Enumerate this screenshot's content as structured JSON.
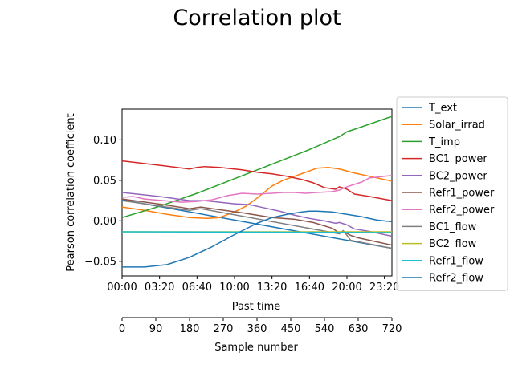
{
  "chart_data": {
    "type": "line",
    "title": "Correlation plot",
    "xlabel": "Past time",
    "ylabel": "Pearson correlation coefficient",
    "secondary_xlabel": "Sample number",
    "xlim": [
      0,
      720
    ],
    "ylim": [
      -0.068,
      0.138
    ],
    "grid": false,
    "legend_position": "right",
    "x_ticks": [
      0,
      100,
      200,
      300,
      400,
      500,
      600,
      700
    ],
    "x_tick_labels": [
      "00:00",
      "03:20",
      "06:40",
      "10:00",
      "13:20",
      "16:40",
      "20:00",
      "23:20"
    ],
    "y_ticks": [
      -0.05,
      0.0,
      0.05,
      0.1
    ],
    "y_tick_labels": [
      "−0.05",
      "0.00",
      "0.05",
      "0.10"
    ],
    "secondary_x_ticks": [
      0,
      90,
      180,
      270,
      360,
      450,
      540,
      630,
      720
    ],
    "secondary_x_tick_labels": [
      "0",
      "90",
      "180",
      "270",
      "360",
      "450",
      "540",
      "630",
      "720"
    ],
    "series": [
      {
        "name": "T_ext",
        "color": "#1f77b4",
        "x": [
          0,
          720
        ],
        "y": [
          0.026,
          -0.034
        ]
      },
      {
        "name": "Solar_irrad",
        "color": "#ff7f0e",
        "x": [
          0,
          60,
          120,
          180,
          230,
          260,
          300,
          330,
          360,
          400,
          430,
          460,
          490,
          520,
          550,
          580,
          620,
          660,
          720
        ],
        "y": [
          0.017,
          0.013,
          0.008,
          0.004,
          0.003,
          0.004,
          0.011,
          0.018,
          0.028,
          0.043,
          0.05,
          0.055,
          0.06,
          0.065,
          0.066,
          0.064,
          0.059,
          0.055,
          0.049
        ]
      },
      {
        "name": "T_imp",
        "color": "#2ca02c",
        "x": [
          0,
          100,
          200,
          300,
          400,
          500,
          580,
          600,
          620,
          720
        ],
        "y": [
          0.004,
          0.018,
          0.034,
          0.052,
          0.07,
          0.088,
          0.104,
          0.11,
          0.113,
          0.129
        ]
      },
      {
        "name": "BC1_power",
        "color": "#d62728",
        "x": [
          0,
          110,
          180,
          200,
          220,
          260,
          320,
          360,
          400,
          440,
          480,
          510,
          540,
          570,
          580,
          600,
          620,
          660,
          720
        ],
        "y": [
          0.074,
          0.068,
          0.064,
          0.066,
          0.067,
          0.066,
          0.063,
          0.06,
          0.058,
          0.055,
          0.051,
          0.047,
          0.041,
          0.039,
          0.042,
          0.039,
          0.033,
          0.03,
          0.025
        ]
      },
      {
        "name": "BC2_power",
        "color": "#9467bd",
        "x": [
          0,
          100,
          180,
          220,
          300,
          340,
          380,
          420,
          460,
          500,
          540,
          570,
          580,
          600,
          620,
          660,
          720
        ],
        "y": [
          0.035,
          0.03,
          0.025,
          0.025,
          0.021,
          0.02,
          0.016,
          0.012,
          0.007,
          0.003,
          0.0,
          -0.003,
          -0.002,
          -0.005,
          -0.01,
          -0.013,
          -0.019
        ]
      },
      {
        "name": "Refr1_power",
        "color": "#8c564b",
        "x": [
          0,
          110,
          180,
          210,
          320,
          360,
          400,
          460,
          510,
          560,
          580,
          590,
          610,
          630,
          720
        ],
        "y": [
          0.027,
          0.02,
          0.015,
          0.017,
          0.01,
          0.007,
          0.004,
          0.002,
          -0.002,
          -0.009,
          -0.015,
          -0.013,
          -0.018,
          -0.021,
          -0.03
        ]
      },
      {
        "name": "Refr2_power",
        "color": "#e377c2",
        "x": [
          0,
          30,
          60,
          110,
          160,
          200,
          240,
          280,
          320,
          360,
          400,
          430,
          460,
          490,
          520,
          560,
          580,
          600,
          620,
          640,
          660,
          720
        ],
        "y": [
          0.029,
          0.03,
          0.027,
          0.025,
          0.023,
          0.024,
          0.026,
          0.031,
          0.034,
          0.033,
          0.034,
          0.035,
          0.035,
          0.034,
          0.035,
          0.036,
          0.038,
          0.042,
          0.045,
          0.048,
          0.053,
          0.056
        ]
      },
      {
        "name": "BC1_flow",
        "color": "#7f7f7f",
        "x": [
          0,
          180,
          210,
          580,
          590,
          610,
          720
        ],
        "y": [
          0.025,
          0.013,
          0.015,
          -0.016,
          -0.012,
          -0.024,
          -0.034
        ]
      },
      {
        "name": "BC2_flow",
        "color": "#bcbd22",
        "x": [
          0,
          720
        ],
        "y": [
          -0.0135,
          -0.0135
        ]
      },
      {
        "name": "Refr1_flow",
        "color": "#17becf",
        "x": [
          0,
          720
        ],
        "y": [
          -0.0135,
          -0.0145
        ]
      },
      {
        "name": "Refr2_flow",
        "color": "#1f77b4",
        "x": [
          0,
          60,
          120,
          180,
          240,
          300,
          360,
          400,
          440,
          480,
          500,
          520,
          560,
          600,
          640,
          680,
          720
        ],
        "y": [
          -0.057,
          -0.057,
          -0.054,
          -0.045,
          -0.032,
          -0.017,
          -0.003,
          0.004,
          0.008,
          0.011,
          0.012,
          0.012,
          0.011,
          0.008,
          0.005,
          0.001,
          -0.001
        ]
      }
    ]
  }
}
